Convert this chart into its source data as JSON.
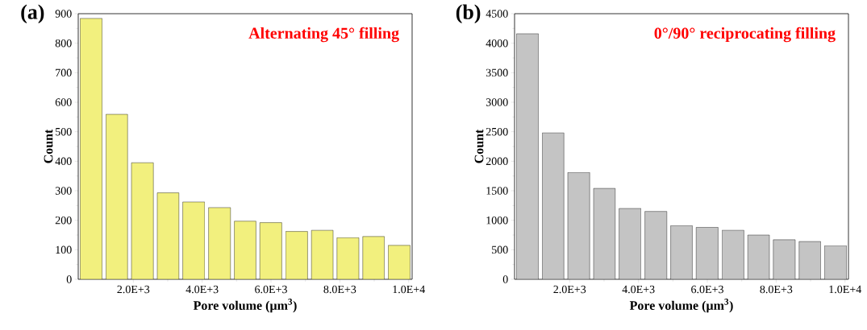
{
  "chart_data": [
    {
      "type": "histogram",
      "title": "Alternating 45° filling",
      "annotations": [
        "(a)"
      ],
      "xlabel": "Pore volume (µm$^{3}$)",
      "ylabel": "Count",
      "bins": [
        400,
        1150,
        1890,
        2640,
        3380,
        4130,
        4880,
        5620,
        6370,
        7120,
        7860,
        8610,
        9350,
        10100
      ],
      "values": [
        884,
        559,
        395,
        293,
        262,
        243,
        197,
        192,
        162,
        166,
        141,
        145,
        115
      ],
      "color": "#f2f07e",
      "xlim": [
        400,
        10100
      ],
      "xticks": [
        {
          "value": 2000,
          "label": "2.0E+3"
        },
        {
          "value": 4000,
          "label": "4.0E+3"
        },
        {
          "value": 6000,
          "label": "6.0E+3"
        },
        {
          "value": 8000,
          "label": "8.0E+3"
        },
        {
          "value": 10000,
          "label": "1.0E+4"
        }
      ],
      "ylim": [
        0,
        900
      ],
      "yticks": [
        0,
        100,
        200,
        300,
        400,
        500,
        600,
        700,
        800,
        900
      ]
    },
    {
      "type": "histogram",
      "title": "0°/90° reciprocating filling",
      "annotations": [
        "(b)"
      ],
      "xlabel": "Pore volume (µm$^{3}$)",
      "ylabel": "Count",
      "bins": [
        400,
        1150,
        1890,
        2640,
        3380,
        4130,
        4880,
        5620,
        6370,
        7120,
        7860,
        8610,
        9350,
        10100
      ],
      "values": [
        4160,
        2480,
        1810,
        1540,
        1200,
        1150,
        910,
        880,
        830,
        750,
        670,
        640,
        570
      ],
      "color": "#c4c4c4",
      "xlim": [
        400,
        10100
      ],
      "xticks": [
        {
          "value": 2000,
          "label": "2.0E+3"
        },
        {
          "value": 4000,
          "label": "4.0E+3"
        },
        {
          "value": 6000,
          "label": "6.0E+3"
        },
        {
          "value": 8000,
          "label": "8.0E+3"
        },
        {
          "value": 10000,
          "label": "1.0E+4"
        }
      ],
      "ylim": [
        0,
        4500
      ],
      "yticks": [
        0,
        500,
        1000,
        1500,
        2000,
        2500,
        3000,
        3500,
        4000,
        4500
      ]
    }
  ]
}
